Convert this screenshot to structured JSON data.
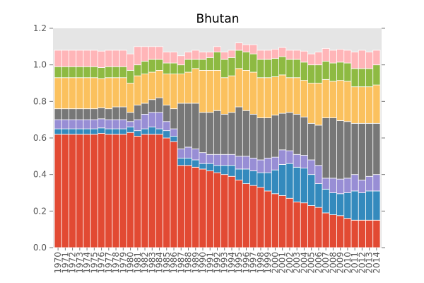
{
  "chart_data": {
    "type": "bar",
    "stacked": true,
    "title": "Bhutan",
    "xlabel": "",
    "ylabel": "",
    "ylim": [
      0,
      1.2
    ],
    "yticks": [
      "0.0",
      "0.2",
      "0.4",
      "0.6",
      "0.8",
      "1.0",
      "1.2"
    ],
    "grid": false,
    "legend": "none",
    "background": "#e5e5e5",
    "categories": [
      "1970",
      "1971",
      "1972",
      "1973",
      "1974",
      "1975",
      "1976",
      "1977",
      "1978",
      "1979",
      "1980",
      "1981",
      "1982",
      "1983",
      "1984",
      "1985",
      "1986",
      "1987",
      "1988",
      "1989",
      "1990",
      "1991",
      "1992",
      "1993",
      "1994",
      "1995",
      "1996",
      "1997",
      "1998",
      "1999",
      "2000",
      "2001",
      "2002",
      "2003",
      "2004",
      "2005",
      "2006",
      "2007",
      "2008",
      "2009",
      "2010",
      "2011",
      "2012",
      "2013",
      "2014"
    ],
    "series": [
      {
        "color": "#e24a33",
        "values": [
          0.62,
          0.62,
          0.62,
          0.62,
          0.62,
          0.62,
          0.625,
          0.62,
          0.62,
          0.62,
          0.63,
          0.61,
          0.62,
          0.62,
          0.62,
          0.6,
          0.58,
          0.45,
          0.45,
          0.44,
          0.43,
          0.42,
          0.41,
          0.4,
          0.39,
          0.37,
          0.35,
          0.34,
          0.33,
          0.31,
          0.295,
          0.285,
          0.27,
          0.25,
          0.245,
          0.23,
          0.22,
          0.19,
          0.18,
          0.175,
          0.16,
          0.15,
          0.15,
          0.15,
          0.15
        ]
      },
      {
        "color": "#348abd",
        "values": [
          0.03,
          0.03,
          0.03,
          0.03,
          0.03,
          0.03,
          0.03,
          0.03,
          0.03,
          0.03,
          0.03,
          0.03,
          0.03,
          0.04,
          0.03,
          0.04,
          0.03,
          0.04,
          0.04,
          0.04,
          0.03,
          0.04,
          0.04,
          0.05,
          0.06,
          0.06,
          0.08,
          0.08,
          0.08,
          0.1,
          0.13,
          0.17,
          0.19,
          0.19,
          0.19,
          0.17,
          0.13,
          0.13,
          0.12,
          0.12,
          0.14,
          0.16,
          0.15,
          0.16,
          0.16
        ]
      },
      {
        "color": "#988ed5",
        "values": [
          0.05,
          0.05,
          0.05,
          0.05,
          0.05,
          0.05,
          0.05,
          0.05,
          0.05,
          0.05,
          0.03,
          0.06,
          0.08,
          0.08,
          0.09,
          0.05,
          0.04,
          0.05,
          0.06,
          0.06,
          0.06,
          0.05,
          0.06,
          0.06,
          0.06,
          0.07,
          0.07,
          0.07,
          0.07,
          0.08,
          0.07,
          0.08,
          0.07,
          0.07,
          0.07,
          0.08,
          0.1,
          0.06,
          0.08,
          0.08,
          0.08,
          0.09,
          0.07,
          0.08,
          0.09
        ]
      },
      {
        "color": "#777777",
        "values": [
          0.06,
          0.06,
          0.06,
          0.06,
          0.06,
          0.06,
          0.06,
          0.06,
          0.07,
          0.07,
          0.05,
          0.08,
          0.06,
          0.07,
          0.08,
          0.09,
          0.11,
          0.25,
          0.24,
          0.25,
          0.22,
          0.23,
          0.24,
          0.22,
          0.23,
          0.27,
          0.25,
          0.24,
          0.23,
          0.22,
          0.23,
          0.2,
          0.21,
          0.22,
          0.21,
          0.2,
          0.22,
          0.33,
          0.33,
          0.32,
          0.31,
          0.28,
          0.31,
          0.29,
          0.28
        ]
      },
      {
        "color": "#fbc15e",
        "values": [
          0.17,
          0.17,
          0.17,
          0.17,
          0.17,
          0.17,
          0.16,
          0.17,
          0.16,
          0.16,
          0.16,
          0.16,
          0.16,
          0.15,
          0.15,
          0.17,
          0.19,
          0.16,
          0.17,
          0.19,
          0.23,
          0.23,
          0.22,
          0.2,
          0.2,
          0.21,
          0.22,
          0.23,
          0.22,
          0.22,
          0.21,
          0.21,
          0.19,
          0.2,
          0.2,
          0.22,
          0.23,
          0.21,
          0.2,
          0.22,
          0.22,
          0.2,
          0.2,
          0.2,
          0.21
        ]
      },
      {
        "color": "#8eba42",
        "values": [
          0.06,
          0.06,
          0.06,
          0.06,
          0.06,
          0.06,
          0.06,
          0.06,
          0.06,
          0.06,
          0.07,
          0.06,
          0.07,
          0.07,
          0.06,
          0.06,
          0.06,
          0.05,
          0.07,
          0.05,
          0.06,
          0.07,
          0.1,
          0.1,
          0.1,
          0.1,
          0.1,
          0.1,
          0.1,
          0.1,
          0.1,
          0.1,
          0.1,
          0.1,
          0.1,
          0.1,
          0.1,
          0.1,
          0.1,
          0.1,
          0.1,
          0.1,
          0.1,
          0.1,
          0.11
        ]
      },
      {
        "color": "#ffb5b8",
        "values": [
          0.09,
          0.09,
          0.09,
          0.09,
          0.09,
          0.09,
          0.09,
          0.09,
          0.09,
          0.09,
          0.09,
          0.1,
          0.08,
          0.07,
          0.07,
          0.06,
          0.06,
          0.05,
          0.04,
          0.05,
          0.04,
          0.03,
          0.03,
          0.04,
          0.04,
          0.04,
          0.04,
          0.05,
          0.05,
          0.05,
          0.05,
          0.05,
          0.05,
          0.05,
          0.06,
          0.06,
          0.07,
          0.07,
          0.07,
          0.07,
          0.07,
          0.09,
          0.1,
          0.09,
          0.08
        ]
      }
    ]
  }
}
